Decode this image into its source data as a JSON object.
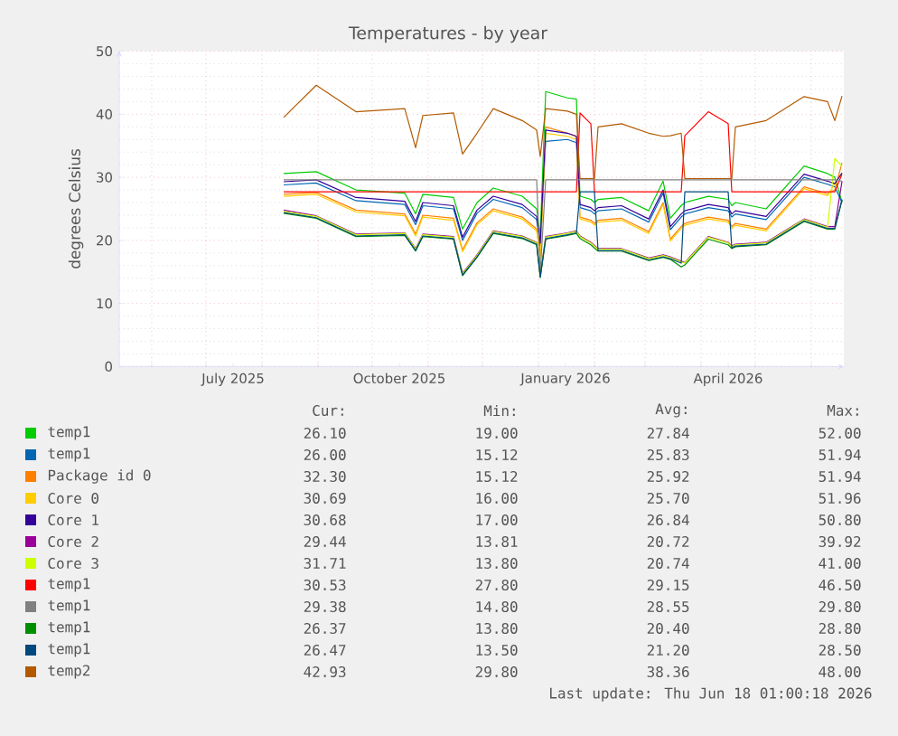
{
  "chart_data": {
    "type": "line",
    "title": "Temperatures - by year",
    "ylabel": "degrees Celsius",
    "x": [
      "2025-08-13",
      "2025-08-31",
      "2025-09-22",
      "2025-10-19",
      "2025-10-25",
      "2025-10-29",
      "2025-11-15",
      "2025-11-20",
      "2025-11-28",
      "2025-12-07",
      "2025-12-23",
      "2025-12-31",
      "2026-01-02",
      "2026-01-05",
      "2026-01-17",
      "2026-01-22",
      "2026-01-24",
      "2026-01-30",
      "2026-02-01",
      "2026-02-03",
      "2026-02-16",
      "2026-03-03",
      "2026-03-11",
      "2026-03-15",
      "2026-03-21",
      "2026-03-23",
      "2026-04-05",
      "2026-04-16",
      "2026-04-18",
      "2026-04-20",
      "2026-05-07",
      "2026-05-28",
      "2026-06-10",
      "2026-06-14",
      "2026-06-18"
    ],
    "series": [
      {
        "name": "temp1",
        "color": "#00cc00",
        "values": [
          30.6,
          30.9,
          28.0,
          27.5,
          24.2,
          27.3,
          26.8,
          21.8,
          26.0,
          28.3,
          27.0,
          25.0,
          20.8,
          43.6,
          42.6,
          42.4,
          27.0,
          26.5,
          26.0,
          26.5,
          26.8,
          24.7,
          29.4,
          23.5,
          25.5,
          26.0,
          27.0,
          26.5,
          25.5,
          26.0,
          25.0,
          31.8,
          30.6,
          30.0,
          26.1
        ]
      },
      {
        "name": "temp1",
        "color": "#0066b3",
        "values": [
          28.8,
          29.1,
          26.3,
          25.7,
          22.5,
          25.5,
          25.0,
          20.0,
          24.3,
          26.5,
          25.2,
          23.3,
          19.1,
          35.7,
          36.0,
          35.5,
          25.2,
          24.7,
          24.2,
          24.7,
          25.0,
          22.9,
          27.5,
          21.7,
          23.7,
          24.2,
          25.2,
          24.7,
          23.7,
          24.2,
          23.3,
          30.0,
          28.9,
          28.5,
          26.0
        ]
      },
      {
        "name": "Package id 0",
        "color": "#ff7f00",
        "values": [
          27.3,
          27.6,
          24.8,
          24.2,
          21.0,
          24.0,
          23.5,
          18.5,
          22.8,
          25.0,
          23.7,
          21.8,
          17.6,
          38.0,
          37.0,
          36.5,
          23.7,
          23.2,
          22.7,
          23.2,
          23.5,
          21.4,
          26.0,
          20.2,
          22.2,
          22.7,
          23.7,
          23.2,
          22.2,
          22.7,
          21.8,
          28.5,
          27.4,
          28.0,
          32.3
        ]
      },
      {
        "name": "Core 0",
        "color": "#ffcc00",
        "values": [
          27.0,
          27.3,
          24.5,
          23.9,
          20.7,
          23.7,
          23.2,
          18.2,
          22.5,
          24.7,
          23.4,
          21.5,
          17.3,
          37.0,
          36.5,
          36.0,
          23.4,
          22.9,
          22.4,
          22.9,
          23.2,
          21.1,
          25.7,
          19.9,
          21.9,
          22.4,
          23.4,
          22.9,
          21.9,
          22.4,
          21.5,
          28.2,
          27.1,
          29.0,
          30.7
        ]
      },
      {
        "name": "Core 1",
        "color": "#330099",
        "values": [
          29.3,
          29.6,
          26.8,
          26.2,
          23.0,
          26.0,
          25.5,
          20.5,
          24.8,
          27.0,
          25.7,
          23.8,
          19.6,
          37.5,
          37.0,
          36.5,
          25.7,
          25.2,
          24.7,
          25.2,
          25.5,
          23.4,
          28.0,
          22.2,
          24.2,
          24.7,
          25.7,
          25.2,
          24.2,
          24.7,
          23.8,
          30.5,
          29.4,
          29.0,
          30.7
        ]
      },
      {
        "name": "Core 2",
        "color": "#990099",
        "values": [
          24.8,
          23.9,
          21.0,
          21.2,
          18.7,
          21.0,
          20.6,
          14.8,
          17.7,
          21.5,
          20.7,
          19.7,
          14.5,
          20.6,
          21.2,
          21.5,
          20.7,
          19.7,
          19.2,
          18.7,
          18.7,
          17.2,
          17.7,
          17.4,
          16.7,
          16.5,
          20.6,
          19.7,
          19.1,
          19.4,
          19.7,
          23.4,
          22.2,
          22.2,
          29.4
        ]
      },
      {
        "name": "Core 3",
        "color": "#ccff00",
        "values": [
          24.6,
          23.8,
          20.9,
          21.1,
          18.6,
          20.9,
          20.5,
          14.7,
          17.6,
          21.4,
          20.6,
          19.6,
          14.4,
          20.5,
          21.1,
          21.4,
          20.6,
          19.6,
          19.1,
          18.6,
          18.6,
          17.1,
          17.6,
          17.3,
          16.6,
          16.4,
          20.5,
          19.6,
          19.0,
          19.3,
          19.6,
          23.3,
          22.1,
          33.0,
          31.7
        ]
      },
      {
        "name": "temp1",
        "color": "#ff0000",
        "values": [
          27.7,
          27.7,
          27.7,
          27.7,
          27.7,
          27.7,
          27.7,
          27.7,
          27.7,
          27.7,
          27.7,
          27.7,
          27.7,
          27.7,
          27.7,
          27.7,
          40.2,
          38.5,
          27.7,
          27.7,
          27.7,
          27.7,
          27.7,
          27.7,
          27.7,
          36.6,
          40.4,
          38.5,
          27.7,
          27.7,
          27.7,
          27.7,
          27.7,
          27.7,
          30.5
        ]
      },
      {
        "name": "temp1",
        "color": "#808080",
        "values": [
          29.6,
          29.6,
          29.6,
          29.6,
          29.6,
          29.6,
          29.6,
          29.6,
          29.6,
          29.6,
          29.6,
          29.6,
          14.8,
          29.6,
          29.6,
          29.6,
          29.6,
          29.6,
          29.6,
          29.6,
          29.6,
          29.6,
          29.6,
          29.6,
          29.6,
          29.6,
          29.6,
          29.6,
          29.6,
          29.6,
          29.6,
          29.6,
          29.6,
          29.6,
          29.4
        ]
      },
      {
        "name": "temp1",
        "color": "#008f00",
        "values": [
          24.3,
          23.5,
          20.6,
          20.8,
          18.3,
          20.6,
          20.2,
          14.4,
          17.3,
          21.1,
          20.3,
          19.3,
          14.1,
          20.2,
          20.8,
          21.1,
          20.3,
          19.3,
          18.8,
          18.3,
          18.3,
          16.8,
          17.3,
          17.0,
          15.8,
          16.1,
          20.2,
          19.3,
          18.7,
          19.0,
          19.3,
          23.0,
          21.8,
          21.8,
          26.4
        ]
      },
      {
        "name": "temp1",
        "color": "#00487d",
        "values": [
          24.4,
          23.6,
          20.7,
          20.9,
          18.4,
          20.7,
          20.3,
          14.5,
          17.4,
          21.2,
          20.4,
          19.4,
          14.2,
          20.3,
          20.9,
          21.2,
          27.7,
          27.7,
          27.7,
          18.4,
          18.4,
          16.9,
          17.4,
          17.1,
          16.4,
          27.7,
          27.7,
          27.7,
          18.8,
          19.1,
          19.4,
          23.1,
          21.9,
          21.9,
          26.5
        ]
      },
      {
        "name": "temp2",
        "color": "#b35a00",
        "values": [
          39.5,
          44.6,
          40.4,
          40.9,
          34.7,
          39.8,
          40.2,
          33.7,
          37.0,
          40.9,
          39.0,
          37.5,
          33.3,
          40.9,
          40.5,
          40.0,
          29.8,
          29.8,
          29.8,
          38.0,
          38.5,
          37.0,
          36.5,
          36.6,
          37.0,
          29.8,
          29.8,
          29.8,
          29.8,
          38.0,
          39.0,
          42.8,
          42.0,
          39.0,
          42.9
        ]
      }
    ],
    "xlim": [
      "2025-05-14",
      "2026-06-19"
    ],
    "xticks": [
      {
        "value": "2025-06-01",
        "label": null
      },
      {
        "value": "2025-07-01",
        "label": null
      },
      {
        "value": "2025-07-16",
        "label": "July 2025"
      },
      {
        "value": "2025-08-01",
        "label": null
      },
      {
        "value": "2025-09-01",
        "label": null
      },
      {
        "value": "2025-10-01",
        "label": null
      },
      {
        "value": "2025-10-16",
        "label": "October 2025"
      },
      {
        "value": "2025-11-01",
        "label": null
      },
      {
        "value": "2025-12-01",
        "label": null
      },
      {
        "value": "2026-01-01",
        "label": null
      },
      {
        "value": "2026-01-16",
        "label": "January 2026"
      },
      {
        "value": "2026-02-01",
        "label": null
      },
      {
        "value": "2026-03-01",
        "label": null
      },
      {
        "value": "2026-04-01",
        "label": null
      },
      {
        "value": "2026-04-16",
        "label": "April 2026"
      },
      {
        "value": "2026-05-01",
        "label": null
      },
      {
        "value": "2026-06-01",
        "label": null
      }
    ],
    "ylim": [
      0,
      50
    ],
    "yticks": [
      0,
      10,
      20,
      30,
      40,
      50
    ],
    "grid": true,
    "legend": "bottom",
    "annotations": [
      "Cur:",
      "Min:",
      "Avg:",
      "Max:",
      "26.10",
      "19.00",
      "27.84",
      "52.00",
      "26.00",
      "15.12",
      "25.83",
      "51.94",
      "32.30",
      "15.12",
      "25.92",
      "51.94",
      "30.69",
      "16.00",
      "25.70",
      "51.96",
      "30.68",
      "17.00",
      "26.84",
      "50.80",
      "29.44",
      "13.81",
      "20.72",
      "39.92",
      "31.71",
      "13.80",
      "20.74",
      "41.00",
      "30.53",
      "27.80",
      "29.15",
      "46.50",
      "29.38",
      "14.80",
      "28.55",
      "29.80",
      "26.37",
      "13.80",
      "20.40",
      "28.80",
      "26.47",
      "13.50",
      "21.20",
      "28.50",
      "42.93",
      "29.80",
      "38.36",
      "48.00",
      "Last update: Thu Jun 18 01:00:18 2026"
    ]
  }
}
